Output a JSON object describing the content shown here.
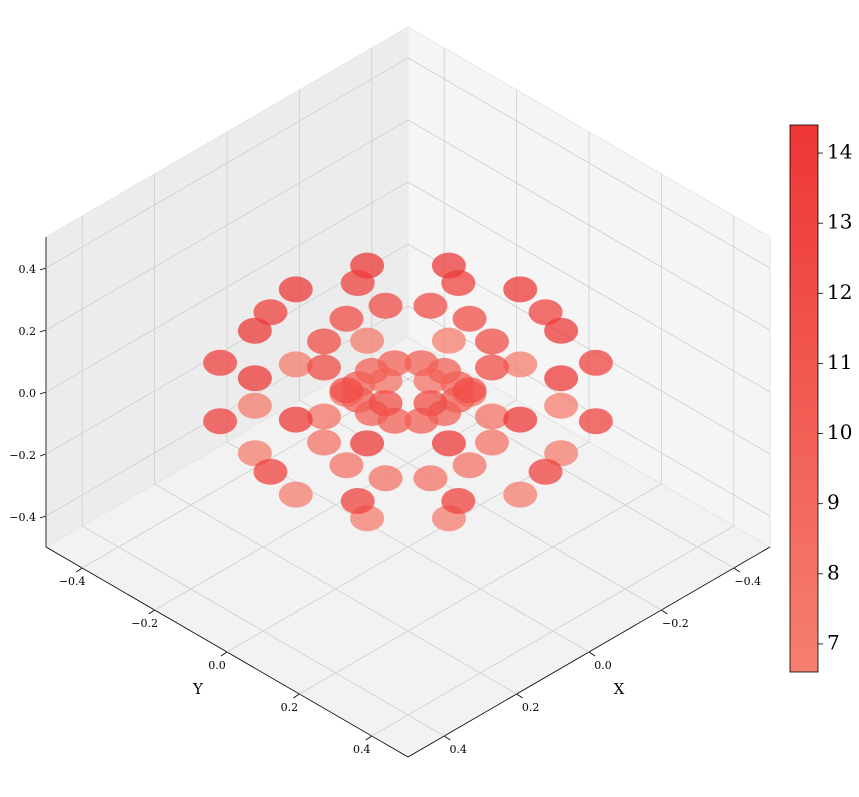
{
  "chart_data": {
    "type": "scatter3d",
    "xlabel": "X",
    "ylabel": "Y",
    "xlim": [
      -0.5,
      0.5
    ],
    "ylim": [
      -0.5,
      0.5
    ],
    "zlim": [
      -0.5,
      0.5
    ],
    "xticks": [
      {
        "value": -0.4,
        "label": "−0.4"
      },
      {
        "value": -0.2,
        "label": "−0.2"
      },
      {
        "value": 0,
        "label": "0.0"
      },
      {
        "value": 0.2,
        "label": "0.2"
      },
      {
        "value": 0.4,
        "label": "0.4"
      }
    ],
    "yticks": [
      {
        "value": -0.4,
        "label": "−0.4"
      },
      {
        "value": -0.2,
        "label": "−0.2"
      },
      {
        "value": 0,
        "label": "0.0"
      },
      {
        "value": 0.2,
        "label": "0.2"
      },
      {
        "value": 0.4,
        "label": "0.4"
      }
    ],
    "zticks": [
      {
        "value": -0.4,
        "label": "−0.4"
      },
      {
        "value": -0.2,
        "label": "−0.2"
      },
      {
        "value": 0,
        "label": "0.0"
      },
      {
        "value": 0.2,
        "label": "0.2"
      },
      {
        "value": 0.4,
        "label": "0.4"
      }
    ],
    "grid": true,
    "cmap": [
      "#f5806f",
      "#ee3636"
    ],
    "clim": [
      6.6,
      14.4
    ],
    "cbticks": [
      7,
      8,
      9,
      10,
      11,
      12,
      13,
      14
    ],
    "x": [
      0.38,
      0.31,
      0.17,
      0.1,
      0.17,
      0.31,
      0.329,
      0.268,
      0.147,
      0.087,
      0.147,
      0.268,
      0.19,
      0.155,
      0.085,
      0.05,
      0.085,
      0.155,
      0,
      0,
      0,
      0,
      0,
      0,
      -0.19,
      -0.155,
      -0.085,
      -0.05,
      -0.085,
      -0.155,
      -0.329,
      -0.268,
      -0.147,
      -0.087,
      -0.147,
      -0.268,
      -0.38,
      -0.31,
      -0.17,
      -0.1,
      -0.17,
      -0.31,
      -0.329,
      -0.268,
      -0.147,
      -0.087,
      -0.147,
      -0.268,
      -0.19,
      -0.155,
      -0.085,
      -0.05,
      -0.085,
      -0.155,
      0,
      0,
      0,
      0,
      0,
      0,
      0.19,
      0.155,
      0.085,
      0.05,
      0.085,
      0.155,
      0.329,
      0.268,
      0.147,
      0.087,
      0.147,
      0.268
    ],
    "y": [
      0,
      0,
      0,
      0,
      0,
      0,
      0.19,
      0.155,
      0.085,
      0.05,
      0.085,
      0.155,
      0.329,
      0.268,
      0.147,
      0.087,
      0.147,
      0.268,
      0.38,
      0.31,
      0.17,
      0.1,
      0.17,
      0.31,
      0.329,
      0.268,
      0.147,
      0.087,
      0.147,
      0.268,
      0.19,
      0.155,
      0.085,
      0.05,
      0.085,
      0.155,
      0,
      0,
      0,
      0,
      0,
      0,
      -0.19,
      -0.155,
      -0.085,
      -0.05,
      -0.085,
      -0.155,
      -0.329,
      -0.268,
      -0.147,
      -0.087,
      -0.147,
      -0.268,
      -0.38,
      -0.31,
      -0.17,
      -0.1,
      -0.17,
      -0.31,
      -0.329,
      -0.268,
      -0.147,
      -0.087,
      -0.147,
      -0.268,
      -0.19,
      -0.155,
      -0.085,
      -0.05,
      -0.085,
      -0.155
    ],
    "z": [
      0,
      0.121,
      0.121,
      0,
      -0.121,
      -0.121,
      0,
      0.121,
      0.121,
      0,
      -0.121,
      -0.121,
      0,
      0.121,
      0.121,
      0,
      -0.121,
      -0.121,
      0,
      0.121,
      0.121,
      0,
      -0.121,
      -0.121,
      0,
      0.121,
      0.121,
      0,
      -0.121,
      -0.121,
      0,
      0.121,
      0.121,
      0,
      -0.121,
      -0.121,
      0,
      0.121,
      0.121,
      0,
      -0.121,
      -0.121,
      0,
      0.121,
      0.121,
      0,
      -0.121,
      -0.121,
      0,
      0.121,
      0.121,
      0,
      -0.121,
      -0.121,
      0,
      0.121,
      0.121,
      0,
      -0.121,
      -0.121,
      0,
      0.121,
      0.121,
      0,
      -0.121,
      -0.121,
      0,
      0.121,
      0.121,
      0,
      -0.121,
      -0.121
    ],
    "values": [
      13,
      14,
      12,
      10,
      8,
      7,
      13,
      14,
      12,
      10,
      8,
      7,
      13,
      14,
      12,
      10,
      8,
      7,
      13,
      14,
      12,
      10,
      8,
      7,
      13,
      14,
      12,
      10,
      8,
      7,
      13,
      14,
      12,
      10,
      8,
      7,
      13,
      14,
      12,
      10,
      8,
      7,
      13,
      14,
      12,
      10,
      8,
      7,
      13,
      14,
      12,
      10,
      8,
      7,
      13,
      14,
      12,
      10,
      8,
      7,
      13,
      14,
      12,
      10,
      8,
      7,
      13,
      14,
      12,
      10,
      8,
      7
    ]
  }
}
